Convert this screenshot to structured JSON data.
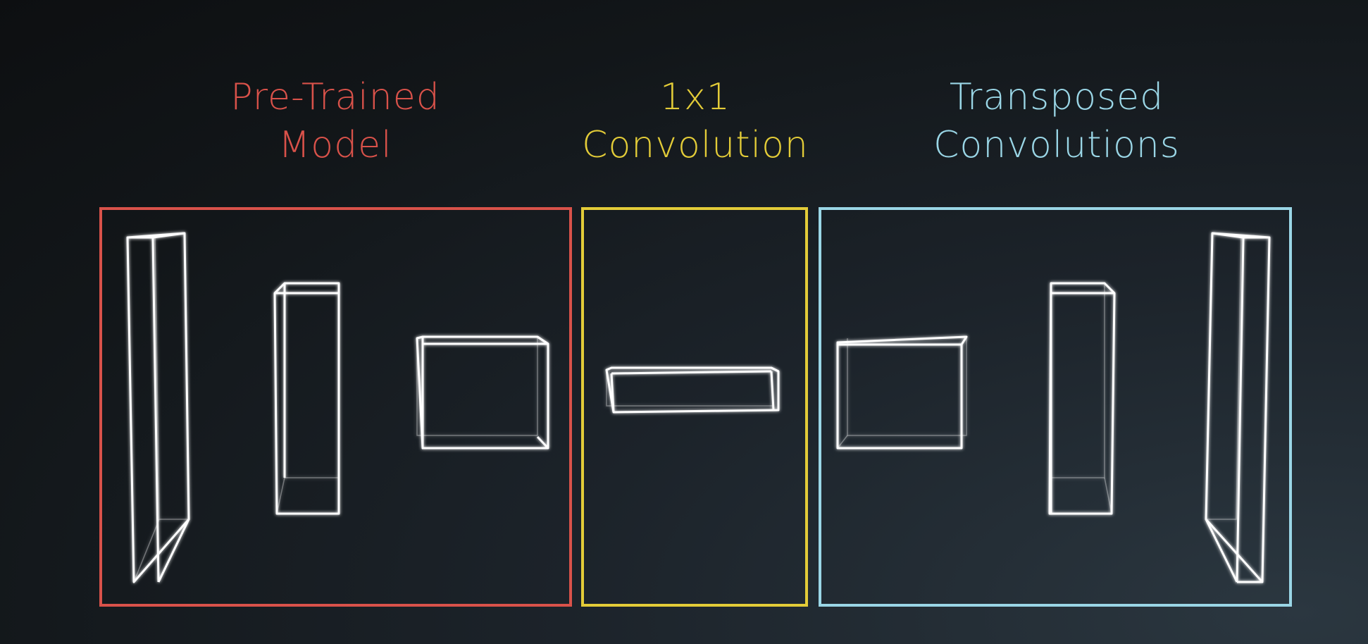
{
  "sections": [
    {
      "id": "pretrained",
      "title_line1": "Pre-Trained",
      "title_line2": "Model",
      "color": "#d9524a"
    },
    {
      "id": "1x1",
      "title_line1": "1x1",
      "title_line2": "Convolution",
      "color": "#e3cc38"
    },
    {
      "id": "transposed",
      "title_line1": "Transposed",
      "title_line2": "Convolutions",
      "color": "#9ad6e6"
    }
  ]
}
